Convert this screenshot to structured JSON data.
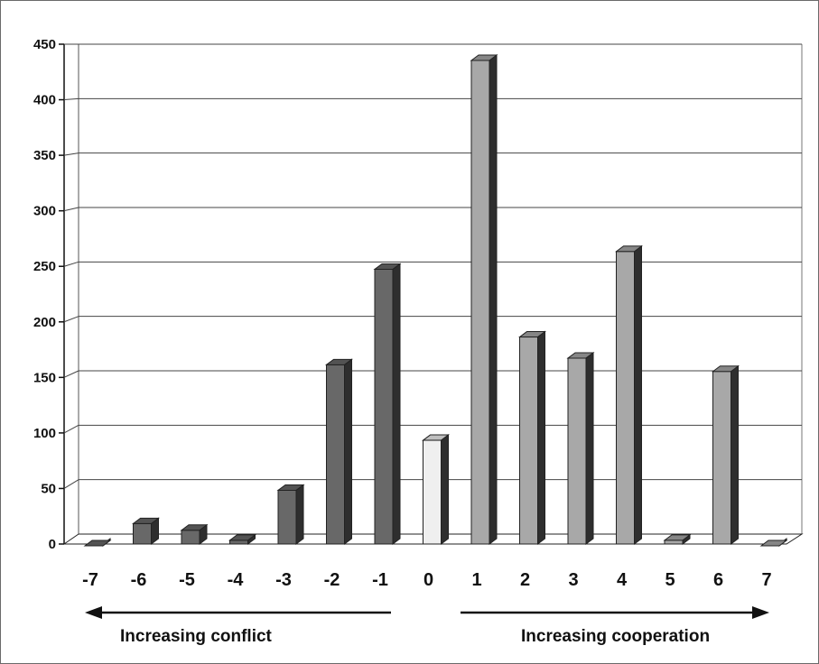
{
  "chart_data": {
    "type": "bar",
    "title": "",
    "xlabel": "",
    "ylabel": "",
    "ylim": [
      0,
      450
    ],
    "yticks": [
      0,
      50,
      100,
      150,
      200,
      250,
      300,
      350,
      400,
      450
    ],
    "grid": true,
    "style": "3d-bar",
    "categories": [
      "-7",
      "-6",
      "-5",
      "-4",
      "-3",
      "-2",
      "-1",
      "0",
      "1",
      "2",
      "3",
      "4",
      "5",
      "6",
      "7"
    ],
    "values": [
      0,
      20,
      14,
      5,
      50,
      163,
      249,
      95,
      437,
      188,
      169,
      265,
      5,
      157,
      0
    ],
    "colors": {
      "conflict": "#686868",
      "neutral": "#efefef",
      "cooperation": "#a8a8a8"
    },
    "annotations": {
      "left": "Increasing conflict",
      "right": "Increasing cooperation"
    }
  }
}
